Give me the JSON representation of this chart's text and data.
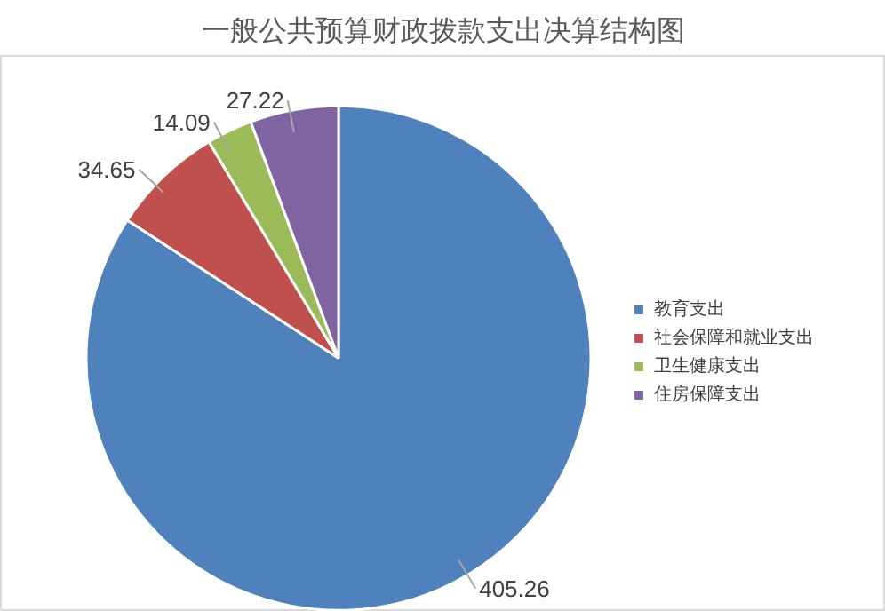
{
  "chart_data": {
    "type": "pie",
    "title": "一般公共预算财政拨款支出决算结构图",
    "categories": [
      "教育支出",
      "社会保障和就业支出",
      "卫生健康支出",
      "住房保障支出"
    ],
    "values": [
      405.26,
      34.65,
      14.09,
      27.22
    ],
    "colors": [
      "#4f81bd",
      "#c0504d",
      "#9bbb59",
      "#8064a2"
    ],
    "data_labels": true,
    "legend": "right"
  }
}
